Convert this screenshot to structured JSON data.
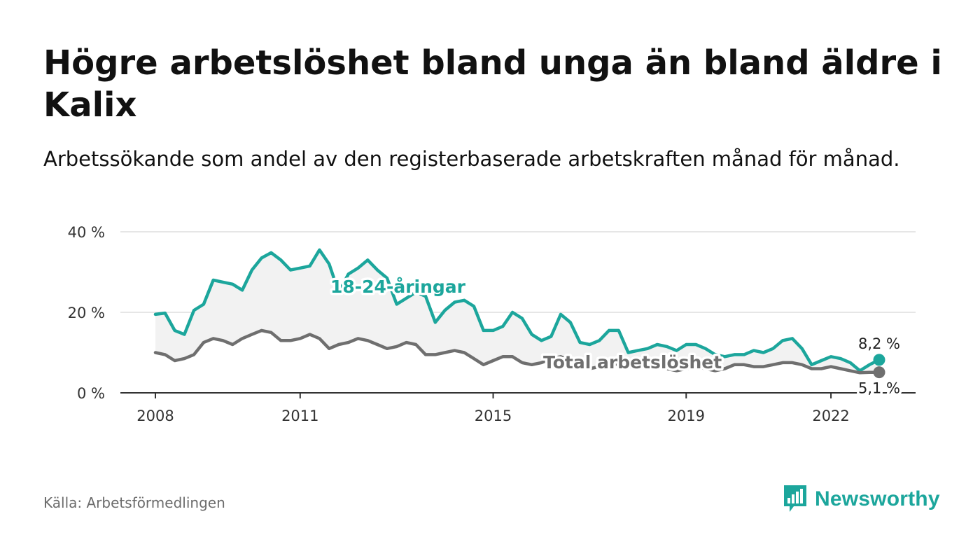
{
  "title": "Högre arbetslöshet bland unga än bland äldre i Kalix",
  "subtitle": "Arbetssökande som andel av den registerbaserade arbetskraften månad för månad.",
  "source": "Källa: Arbetsförmedlingen",
  "brand": "Newsworthy",
  "colors": {
    "youth": "#1ca69c",
    "total": "#6f6f6f",
    "band": "#f2f2f2",
    "grid": "#dddddd",
    "axis": "#333333"
  },
  "chart_data": {
    "type": "line",
    "title": "Högre arbetslöshet bland unga än bland äldre i Kalix",
    "xlabel": "",
    "ylabel": "",
    "xlim": [
      2008.0,
      2023.0
    ],
    "ylim": [
      0,
      40
    ],
    "yticks": [
      0,
      20,
      40
    ],
    "ytick_labels": [
      "0 %",
      "20 %",
      "40 %"
    ],
    "xticks": [
      2008,
      2011,
      2015,
      2019,
      2022
    ],
    "xtick_labels": [
      "2008",
      "2011",
      "2015",
      "2019",
      "2022"
    ],
    "grid": true,
    "series": [
      {
        "name": "18-24-åringar",
        "label": "18-24-åringar",
        "end_label": "8,2 %",
        "x": [
          2008.0,
          2008.2,
          2008.4,
          2008.6,
          2008.8,
          2009.0,
          2009.2,
          2009.4,
          2009.6,
          2009.8,
          2010.0,
          2010.2,
          2010.4,
          2010.6,
          2010.8,
          2011.0,
          2011.2,
          2011.4,
          2011.6,
          2011.8,
          2012.0,
          2012.2,
          2012.4,
          2012.6,
          2012.8,
          2013.0,
          2013.2,
          2013.4,
          2013.6,
          2013.8,
          2014.0,
          2014.2,
          2014.4,
          2014.6,
          2014.8,
          2015.0,
          2015.2,
          2015.4,
          2015.6,
          2015.8,
          2016.0,
          2016.2,
          2016.4,
          2016.6,
          2016.8,
          2017.0,
          2017.2,
          2017.4,
          2017.6,
          2017.8,
          2018.0,
          2018.2,
          2018.4,
          2018.6,
          2018.8,
          2019.0,
          2019.2,
          2019.4,
          2019.6,
          2019.8,
          2020.0,
          2020.2,
          2020.4,
          2020.6,
          2020.8,
          2021.0,
          2021.2,
          2021.4,
          2021.6,
          2021.8,
          2022.0,
          2022.2,
          2022.4,
          2022.6,
          2022.8,
          2023.0
        ],
        "values": [
          19.5,
          19.8,
          15.5,
          14.5,
          20.5,
          22.0,
          28.0,
          27.5,
          27.0,
          25.5,
          30.5,
          33.5,
          34.8,
          33.0,
          30.5,
          31.0,
          31.5,
          35.5,
          32.0,
          25.0,
          29.5,
          31.0,
          33.0,
          30.5,
          28.5,
          22.0,
          23.5,
          25.0,
          24.0,
          17.5,
          20.5,
          22.5,
          23.0,
          21.5,
          15.5,
          15.5,
          16.5,
          20.0,
          18.5,
          14.5,
          13.0,
          14.0,
          19.5,
          17.5,
          12.5,
          12.0,
          13.0,
          15.5,
          15.5,
          10.0,
          10.5,
          11.0,
          12.0,
          11.5,
          10.5,
          12.0,
          12.0,
          11.0,
          9.5,
          9.0,
          9.5,
          9.5,
          10.5,
          10.0,
          11.0,
          13.0,
          13.5,
          11.0,
          7.0,
          8.0,
          9.0,
          8.5,
          7.5,
          5.5,
          7.0,
          8.2
        ]
      },
      {
        "name": "Total arbetslöshet",
        "label": "Total arbetslöshet",
        "end_label": "5,1 %",
        "x": [
          2008.0,
          2008.2,
          2008.4,
          2008.6,
          2008.8,
          2009.0,
          2009.2,
          2009.4,
          2009.6,
          2009.8,
          2010.0,
          2010.2,
          2010.4,
          2010.6,
          2010.8,
          2011.0,
          2011.2,
          2011.4,
          2011.6,
          2011.8,
          2012.0,
          2012.2,
          2012.4,
          2012.6,
          2012.8,
          2013.0,
          2013.2,
          2013.4,
          2013.6,
          2013.8,
          2014.0,
          2014.2,
          2014.4,
          2014.6,
          2014.8,
          2015.0,
          2015.2,
          2015.4,
          2015.6,
          2015.8,
          2016.0,
          2016.2,
          2016.4,
          2016.6,
          2016.8,
          2017.0,
          2017.2,
          2017.4,
          2017.6,
          2017.8,
          2018.0,
          2018.2,
          2018.4,
          2018.6,
          2018.8,
          2019.0,
          2019.2,
          2019.4,
          2019.6,
          2019.8,
          2020.0,
          2020.2,
          2020.4,
          2020.6,
          2020.8,
          2021.0,
          2021.2,
          2021.4,
          2021.6,
          2021.8,
          2022.0,
          2022.2,
          2022.4,
          2022.6,
          2022.8,
          2023.0
        ],
        "values": [
          10.0,
          9.5,
          8.0,
          8.5,
          9.5,
          12.5,
          13.5,
          13.0,
          12.0,
          13.5,
          14.5,
          15.5,
          15.0,
          13.0,
          13.0,
          13.5,
          14.5,
          13.5,
          11.0,
          12.0,
          12.5,
          13.5,
          13.0,
          12.0,
          11.0,
          11.5,
          12.5,
          12.0,
          9.5,
          9.5,
          10.0,
          10.5,
          10.0,
          8.5,
          7.0,
          8.0,
          9.0,
          9.0,
          7.5,
          7.0,
          7.5,
          8.5,
          9.0,
          8.0,
          6.5,
          6.0,
          6.5,
          7.5,
          7.0,
          6.5,
          6.0,
          6.5,
          6.5,
          6.0,
          5.5,
          6.0,
          6.5,
          6.0,
          5.5,
          6.0,
          7.0,
          7.0,
          6.5,
          6.5,
          7.0,
          7.5,
          7.5,
          7.0,
          6.0,
          6.0,
          6.5,
          6.0,
          5.5,
          5.0,
          5.1,
          5.1
        ]
      }
    ]
  }
}
